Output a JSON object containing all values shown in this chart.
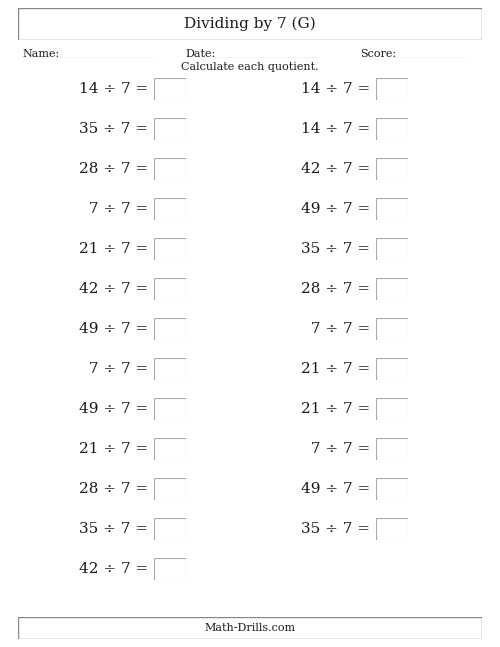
{
  "title": "Dividing by 7 (G)",
  "name_label": "Name:",
  "date_label": "Date:",
  "score_label": "Score:",
  "instruction": "Calculate each quotient.",
  "footer": "Math-Drills.com",
  "left_column": [
    "14 ÷ 7 =",
    "35 ÷ 7 =",
    "28 ÷ 7 =",
    " 7 ÷ 7 =",
    "21 ÷ 7 =",
    "42 ÷ 7 =",
    "49 ÷ 7 =",
    " 7 ÷ 7 =",
    "49 ÷ 7 =",
    "21 ÷ 7 =",
    "28 ÷ 7 =",
    "35 ÷ 7 =",
    "42 ÷ 7 ="
  ],
  "right_column": [
    "14 ÷ 7 =",
    "14 ÷ 7 =",
    "42 ÷ 7 =",
    "49 ÷ 7 =",
    "35 ÷ 7 =",
    "28 ÷ 7 =",
    " 7 ÷ 7 =",
    "21 ÷ 7 =",
    "21 ÷ 7 =",
    " 7 ÷ 7 =",
    "49 ÷ 7 =",
    "35 ÷ 7 ="
  ],
  "bg_color": "#ffffff",
  "text_color": "#1a1a1a",
  "border_color": "#888888",
  "fig_width": 5.0,
  "fig_height": 6.47,
  "dpi": 100,
  "title_fontsize": 11,
  "label_fontsize": 8,
  "instr_fontsize": 8,
  "eq_fontsize": 11,
  "footer_fontsize": 8
}
